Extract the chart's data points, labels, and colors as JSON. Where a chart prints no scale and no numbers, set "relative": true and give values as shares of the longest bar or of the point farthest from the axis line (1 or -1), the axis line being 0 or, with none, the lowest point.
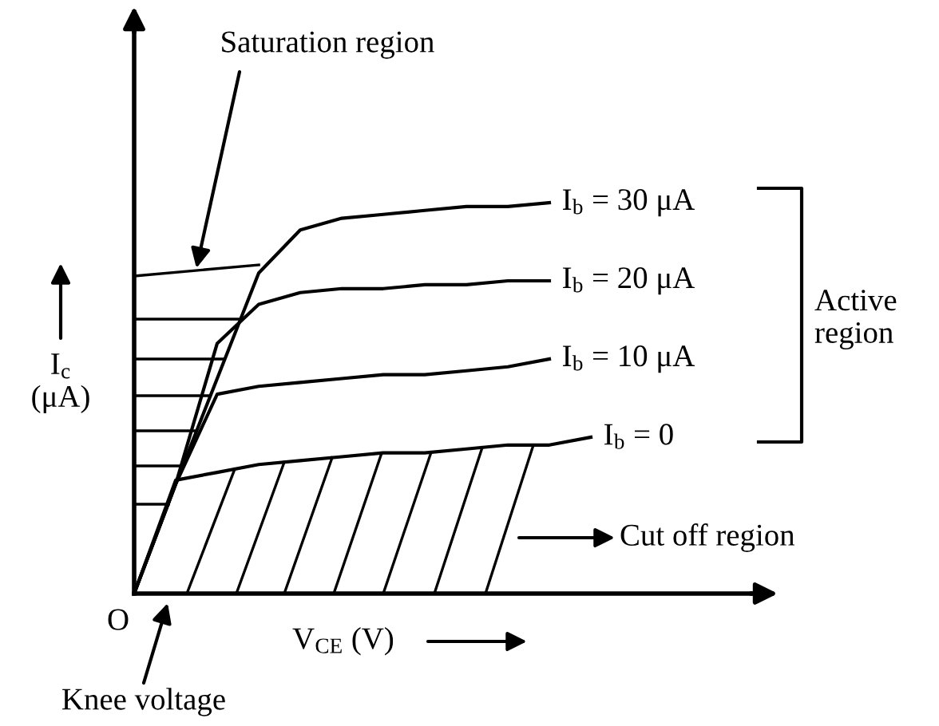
{
  "chart_data": {
    "type": "line",
    "relative": true,
    "xlabel": "V$_{CE}$ (V)",
    "ylabel": "I$_{c}$\n(μA)",
    "categories": [
      null,
      null,
      null,
      null,
      null,
      null,
      null,
      null,
      null,
      null,
      null,
      null
    ],
    "series": [
      {
        "name": "I$_{b}$ = 30 μA",
        "color": "#000000",
        "values": [
          0,
          0.28,
          0.55,
          0.82,
          0.93,
          0.96,
          0.97,
          0.98,
          0.99,
          0.99,
          1.0,
          null
        ]
      },
      {
        "name": "I$_{b}$ = 20 μA",
        "color": "#000000",
        "values": [
          0,
          0.28,
          0.64,
          0.74,
          0.77,
          0.78,
          0.78,
          0.79,
          0.79,
          0.8,
          0.8,
          null
        ]
      },
      {
        "name": "I$_{b}$ = 10 μA",
        "color": "#000000",
        "values": [
          0,
          0.28,
          0.51,
          0.53,
          0.54,
          0.55,
          0.56,
          0.56,
          0.57,
          0.58,
          0.6,
          null
        ]
      },
      {
        "name": "I$_{b}$ = 0",
        "color": "#000000",
        "values": [
          0,
          0.29,
          0.31,
          0.33,
          0.34,
          0.35,
          0.36,
          0.36,
          0.37,
          0.38,
          0.38,
          0.4
        ]
      }
    ],
    "annotations": [
      "Saturation region",
      "Active\nregion",
      "Cut off region",
      "Knee voltage",
      "O"
    ]
  }
}
